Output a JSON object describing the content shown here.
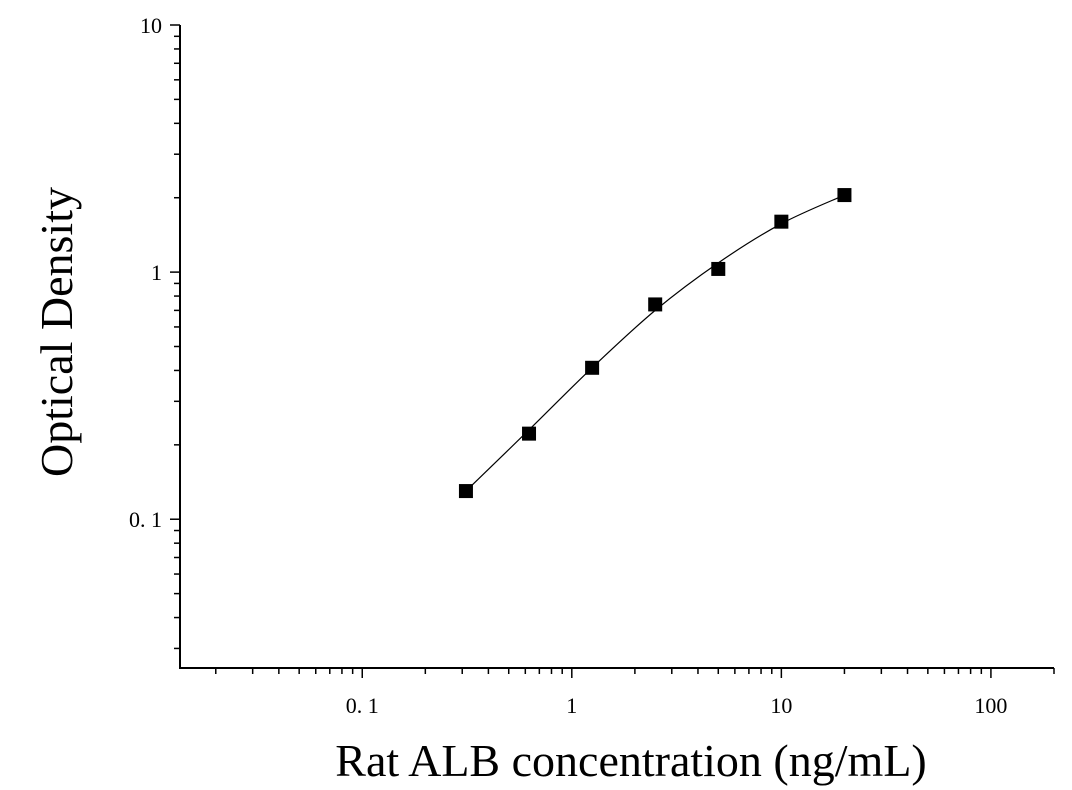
{
  "chart_data": {
    "type": "scatter",
    "title": "",
    "xlabel": "Rat ALB concentration (ng/mL)",
    "ylabel": "Optical Density",
    "xscale": "log",
    "yscale": "log",
    "xlim": [
      0.0135,
      200
    ],
    "ylim": [
      0.025,
      10
    ],
    "grid": false,
    "legend": "none",
    "x_tick_labels": [
      {
        "value": 0.1,
        "label": "0. 1"
      },
      {
        "value": 1,
        "label": "1"
      },
      {
        "value": 10,
        "label": "10"
      },
      {
        "value": 100,
        "label": "100"
      }
    ],
    "y_tick_labels": [
      {
        "value": 0.1,
        "label": "0. 1"
      },
      {
        "value": 1,
        "label": "1"
      },
      {
        "value": 10,
        "label": "10"
      }
    ],
    "series": [
      {
        "marker": "square",
        "color": "#000000",
        "points": [
          {
            "x": 0.3125,
            "y": 0.13
          },
          {
            "x": 0.625,
            "y": 0.222
          },
          {
            "x": 1.25,
            "y": 0.41
          },
          {
            "x": 2.5,
            "y": 0.74
          },
          {
            "x": 5,
            "y": 1.03
          },
          {
            "x": 10,
            "y": 1.6
          },
          {
            "x": 20,
            "y": 2.05
          }
        ]
      }
    ],
    "fit_curve": {
      "color": "#000000",
      "points": [
        {
          "x": 0.3125,
          "y": 0.13
        },
        {
          "x": 0.625,
          "y": 0.23
        },
        {
          "x": 1.25,
          "y": 0.41
        },
        {
          "x": 2.5,
          "y": 0.7
        },
        {
          "x": 5,
          "y": 1.09
        },
        {
          "x": 10,
          "y": 1.57
        },
        {
          "x": 20,
          "y": 2.05
        }
      ]
    }
  }
}
